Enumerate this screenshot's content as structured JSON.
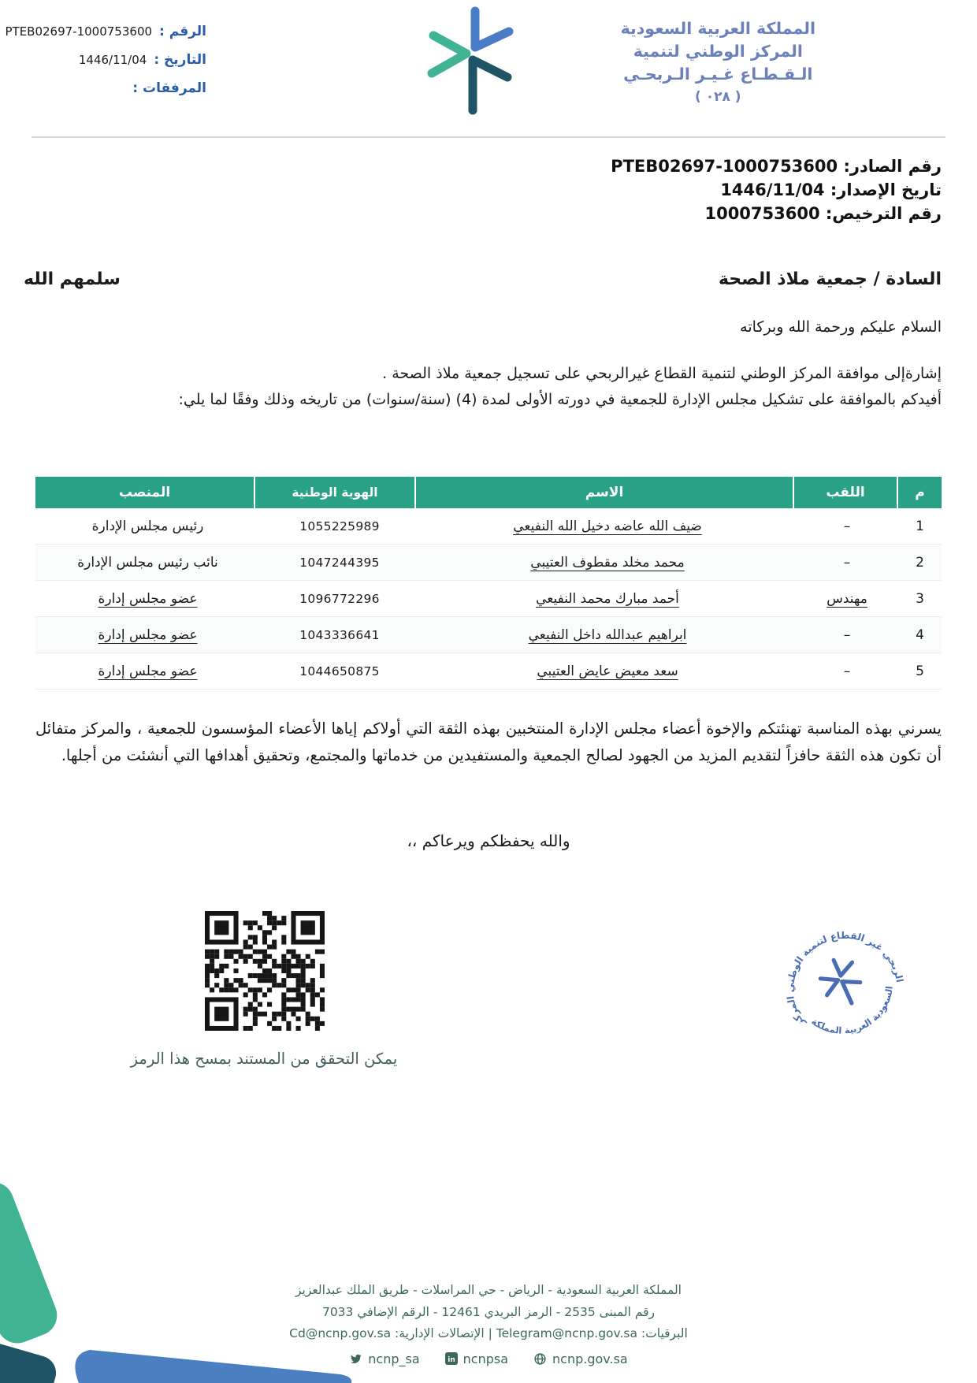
{
  "header": {
    "org_name_lines": [
      "المملكة العربية السعودية",
      "المركز الوطني لتنمية",
      "الـقـطـاع غـيـر الـربحـي"
    ],
    "org_code": "( ٠٢٨ )",
    "meta": {
      "number_label": "الرقم :",
      "number_value": "PTEB02697-1000753600",
      "date_label": "التاريخ :",
      "date_value": "1446/11/04",
      "attachments_label": "المرفقات :",
      "attachments_value": ""
    }
  },
  "reference": {
    "outgoing_label": "رقم الصادر:",
    "outgoing_value": "PTEB02697-1000753600",
    "issue_date_label": "تاريخ الإصدار:",
    "issue_date_value": "1446/11/04",
    "license_label": "رقم الترخيص:",
    "license_value": "1000753600"
  },
  "letter": {
    "addressee": "السادة / جمعية ملاذ الصحة",
    "salutation_side": "سلمهم الله",
    "greeting": "السلام عليكم ورحمة الله وبركاته",
    "body_line1": "إشارةإلى موافقة المركز الوطني لتنمية القطاع غيرالربحي على تسجيل جمعية ملاذ الصحة .",
    "body_line2": "أفيدكم بالموافقة على تشكيل مجلس الإدارة للجمعية في دورته الأولى لمدة (4) (سنة/سنوات) من تاريخه وذلك وفقًا لما يلي:",
    "closing_paragraph": "يسرني بهذه المناسبة تهنئتكم والإخوة أعضاء مجلس الإدارة المنتخبين بهذه الثقة التي أولاكم إياها الأعضاء المؤسسون للجمعية ، والمركز متفائل أن تكون هذه الثقة حافزاً لتقديم المزيد من الجهود لصالح الجمعية والمستفيدين من خدماتها والمجتمع، وتحقيق أهدافها التي أنشئت من أجلها.",
    "farewell": "والله يحفظكم ويرعاكم ،،"
  },
  "board_table": {
    "headers": [
      "م",
      "اللقب",
      "الاسم",
      "الهوية الوطنية",
      "المنصب"
    ],
    "rows": [
      {
        "no": "1",
        "title": "–",
        "title_u": false,
        "name": "ضيف الله عاضه دخيل الله النفيعي",
        "name_u": true,
        "id": "1055225989",
        "position": "رئيس مجلس الإدارة",
        "position_u": false
      },
      {
        "no": "2",
        "title": "–",
        "title_u": false,
        "name": "محمد مخلد مقطوف العتيبي",
        "name_u": true,
        "id": "1047244395",
        "position": "نائب رئيس مجلس الإدارة",
        "position_u": false
      },
      {
        "no": "3",
        "title": "مهندس",
        "title_u": true,
        "name": "أحمد مبارك محمد النفيعي",
        "name_u": true,
        "id": "1096772296",
        "position": "عضو مجلس إدارة",
        "position_u": true
      },
      {
        "no": "4",
        "title": "–",
        "title_u": false,
        "name": "ابراهيم عبدالله داخل النفيعي",
        "name_u": true,
        "id": "1043336641",
        "position": "عضو مجلس إدارة",
        "position_u": true
      },
      {
        "no": "5",
        "title": "–",
        "title_u": false,
        "name": "سعد معيض عايض العتيبي",
        "name_u": true,
        "id": "1044650875",
        "position": "عضو مجلس إدارة",
        "position_u": true
      }
    ]
  },
  "qr": {
    "caption": "يمكن التحقق من المستند بمسح هذا الرمز"
  },
  "stamp": {
    "top_text": "المركز الوطني لتنمية القطاع غير الربحي",
    "bottom_text": "المملكة العربية السعودية"
  },
  "footer": {
    "address_line1": "المملكة العربية السعودية - الرياض - حي المراسلات - طريق الملك عبدالعزيز",
    "address_line2": "رقم المبنى 2535 - الرمز البريدي 12461 - الرقم الإضافي 7033",
    "contacts_line": "البرقيات: Telegram@ncnp.gov.sa | الإتصالات الإدارية: Cd@ncnp.gov.sa",
    "social": [
      {
        "icon": "twitter-icon",
        "label": "ncnp_sa"
      },
      {
        "icon": "linkedin-icon",
        "label": "ncnpsa"
      },
      {
        "icon": "globe-icon",
        "label": "ncnp.gov.sa"
      }
    ]
  },
  "colors": {
    "table_header_teal": "#29a186",
    "header_label_blue": "#2a5da9",
    "org_name_blue": "#6c81bb",
    "stamp_blue": "#4a6cb3",
    "footer_green": "#3c685c",
    "logo_blue": "#4a7cc7",
    "logo_teal": "#3fb394",
    "logo_dark_teal": "#1e5465"
  }
}
